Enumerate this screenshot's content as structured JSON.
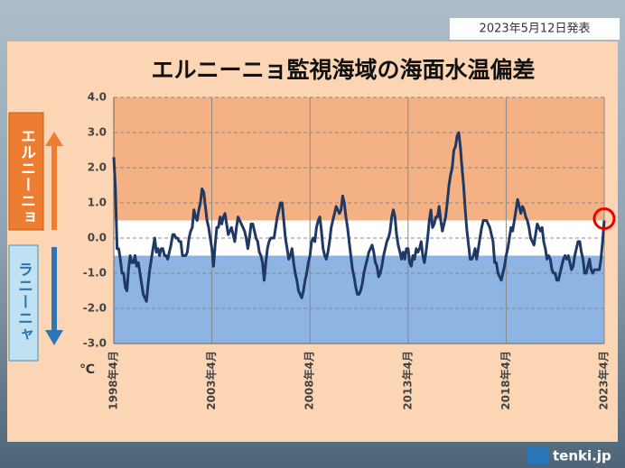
{
  "header": {
    "date": "2023年5月12日発表",
    "brand": "tenki.jp"
  },
  "side_labels": {
    "upper": "エルニーニョ",
    "lower": "ラニーニャ"
  },
  "chart_data": {
    "type": "line",
    "title": "エルニーニョ監視海域の海面水温偏差",
    "y_label": "℃",
    "color": "#1f3864",
    "band_colors": {
      "upper": "#f4b183",
      "middle": "#ffffff",
      "lower": "#8eb4e3"
    },
    "thresholds": [
      -0.5,
      0.5
    ],
    "ylim": [
      -3,
      4
    ],
    "yticks": [
      {
        "value": 4,
        "label": "4.0"
      },
      {
        "value": 3,
        "label": "3.0"
      },
      {
        "value": 2,
        "label": "2.0"
      },
      {
        "value": 1,
        "label": "1.0"
      },
      {
        "value": 0,
        "label": "0.0"
      },
      {
        "value": -1,
        "label": "-1.0"
      },
      {
        "value": -2,
        "label": "-2.0"
      },
      {
        "value": -3,
        "label": "-3.0"
      }
    ],
    "grid": true,
    "categories": [
      "1998年4月",
      null,
      null,
      null,
      null,
      null,
      null,
      null,
      null,
      null,
      null,
      null,
      null,
      null,
      null,
      null,
      null,
      null,
      null,
      null,
      null,
      null,
      null,
      null,
      null,
      null,
      null,
      null,
      null,
      null,
      null,
      null,
      null,
      null,
      null,
      null,
      null,
      null,
      null,
      null,
      null,
      null,
      null,
      null,
      null,
      null,
      null,
      null,
      null,
      null,
      null,
      null,
      null,
      null,
      null,
      null,
      null,
      null,
      null,
      null,
      "2003年4月",
      null,
      null,
      null,
      null,
      null,
      null,
      null,
      null,
      null,
      null,
      null,
      null,
      null,
      null,
      null,
      null,
      null,
      null,
      null,
      null,
      null,
      null,
      null,
      null,
      null,
      null,
      null,
      null,
      null,
      null,
      null,
      null,
      null,
      null,
      null,
      null,
      null,
      null,
      null,
      null,
      null,
      null,
      null,
      null,
      null,
      null,
      null,
      null,
      null,
      null,
      null,
      null,
      null,
      null,
      null,
      null,
      null,
      null,
      null,
      "2008年4月",
      null,
      null,
      null,
      null,
      null,
      null,
      null,
      null,
      null,
      null,
      null,
      null,
      null,
      null,
      null,
      null,
      null,
      null,
      null,
      null,
      null,
      null,
      null,
      null,
      null,
      null,
      null,
      null,
      null,
      null,
      null,
      null,
      null,
      null,
      null,
      null,
      null,
      null,
      null,
      null,
      null,
      null,
      null,
      null,
      null,
      null,
      null,
      null,
      null,
      null,
      null,
      null,
      null,
      null,
      null,
      null,
      null,
      null,
      null,
      "2013年4月",
      null,
      null,
      null,
      null,
      null,
      null,
      null,
      null,
      null,
      null,
      null,
      null,
      null,
      null,
      null,
      null,
      null,
      null,
      null,
      null,
      null,
      null,
      null,
      null,
      null,
      null,
      null,
      null,
      null,
      null,
      null,
      null,
      null,
      null,
      null,
      null,
      null,
      null,
      null,
      null,
      null,
      null,
      null,
      null,
      null,
      null,
      null,
      null,
      null,
      null,
      null,
      null,
      null,
      null,
      null,
      null,
      null,
      null,
      null,
      "2018年4月",
      null,
      null,
      null,
      null,
      null,
      null,
      null,
      null,
      null,
      null,
      null,
      null,
      null,
      null,
      null,
      null,
      null,
      null,
      null,
      null,
      null,
      null,
      null,
      null,
      null,
      null,
      null,
      null,
      null,
      null,
      null,
      null,
      null,
      null,
      null,
      null,
      null,
      null,
      null,
      null,
      null,
      null,
      null,
      null,
      null,
      null,
      null,
      null,
      null,
      null,
      null,
      null,
      null,
      null,
      null,
      null,
      null,
      null,
      null,
      "2023年4月"
    ],
    "values": [
      2.3,
      1.4,
      -0.3,
      -0.3,
      -0.6,
      -1.0,
      -1.0,
      -1.4,
      -1.5,
      -0.9,
      -0.5,
      -0.7,
      -0.7,
      -0.5,
      -0.8,
      -0.7,
      -1.0,
      -1.3,
      -1.6,
      -1.7,
      -1.8,
      -1.3,
      -0.9,
      -0.6,
      -0.3,
      0.0,
      -0.4,
      -0.3,
      -0.5,
      -0.3,
      -0.3,
      -0.5,
      -0.5,
      -0.6,
      -0.4,
      -0.2,
      0.1,
      0.1,
      0.0,
      0.0,
      -0.1,
      -0.1,
      -0.5,
      -0.5,
      -0.5,
      -0.4,
      0.0,
      0.2,
      0.3,
      0.8,
      0.6,
      0.5,
      0.8,
      1.0,
      1.4,
      1.3,
      0.9,
      0.5,
      0.3,
      0.0,
      -0.3,
      -0.8,
      -0.2,
      0.3,
      0.3,
      0.6,
      0.4,
      0.6,
      0.7,
      0.4,
      0.1,
      0.2,
      0.3,
      0.1,
      -0.1,
      0.3,
      0.6,
      0.5,
      0.4,
      0.3,
      0.2,
      0.0,
      -0.3,
      0.0,
      0.4,
      0.4,
      0.2,
      0.0,
      -0.1,
      -0.4,
      -0.5,
      -0.7,
      -1.2,
      -0.7,
      -0.3,
      -0.1,
      0.0,
      0.0,
      0.0,
      0.3,
      0.6,
      0.8,
      1.0,
      1.0,
      0.5,
      0.0,
      -0.3,
      -0.6,
      -0.5,
      -0.3,
      -0.7,
      -1.0,
      -1.2,
      -1.5,
      -1.6,
      -1.7,
      -1.5,
      -1.2,
      -1.0,
      -0.7,
      -0.5,
      -0.1,
      0.0,
      -0.1,
      0.3,
      0.5,
      0.6,
      0.2,
      -0.3,
      -0.5,
      -0.6,
      -0.4,
      -0.1,
      0.3,
      0.5,
      0.7,
      0.9,
      0.8,
      0.7,
      0.8,
      1.2,
      1.0,
      0.6,
      0.3,
      -0.1,
      -0.5,
      -0.9,
      -1.1,
      -1.4,
      -1.6,
      -1.6,
      -1.5,
      -1.3,
      -1.0,
      -0.8,
      -0.6,
      -0.4,
      -0.3,
      -0.2,
      -0.4,
      -0.7,
      -0.8,
      -1.1,
      -1.0,
      -0.8,
      -0.5,
      -0.3,
      -0.1,
      0.0,
      0.2,
      0.6,
      0.8,
      0.6,
      0.1,
      -0.2,
      -0.4,
      -0.6,
      -0.4,
      -0.6,
      -0.3,
      -0.3,
      -0.7,
      -0.8,
      -0.5,
      -0.6,
      -0.3,
      -0.4,
      -0.3,
      -0.1,
      -0.5,
      -0.7,
      -0.4,
      0.0,
      0.5,
      0.8,
      0.3,
      0.4,
      0.6,
      0.6,
      0.9,
      0.5,
      0.2,
      0.4,
      0.6,
      1.0,
      1.5,
      1.8,
      2.0,
      2.5,
      2.6,
      2.9,
      3.0,
      2.6,
      2.0,
      1.5,
      0.8,
      0.2,
      -0.2,
      -0.6,
      -0.6,
      -0.5,
      -0.3,
      -0.6,
      -0.3,
      0.0,
      0.3,
      0.5,
      0.5,
      0.5,
      0.4,
      0.3,
      0.1,
      -0.1,
      -0.7,
      -0.7,
      -1.0,
      -1.1,
      -1.2,
      -1.0,
      -0.8,
      -0.5,
      -0.3,
      0.0,
      0.3,
      0.2,
      0.5,
      0.8,
      1.1,
      0.9,
      0.7,
      0.9,
      0.8,
      0.6,
      0.5,
      0.3,
      0.0,
      -0.1,
      -0.2,
      0.1,
      0.4,
      0.3,
      0.2,
      0.3,
      -0.1,
      -0.3,
      -0.6,
      -0.5,
      -0.6,
      -0.9,
      -1.0,
      -1.0,
      -1.2,
      -1.2,
      -1.0,
      -0.8,
      -0.6,
      -0.5,
      -0.6,
      -0.5,
      -0.7,
      -0.9,
      -0.8,
      -0.5,
      -0.3,
      -0.1,
      -0.1,
      -0.4,
      -0.6,
      -1.0,
      -1.0,
      -0.8,
      -0.6,
      -0.9,
      -1.0,
      -0.9,
      -0.9,
      -0.9,
      -0.9,
      -0.6,
      -0.1,
      0.5
    ]
  }
}
